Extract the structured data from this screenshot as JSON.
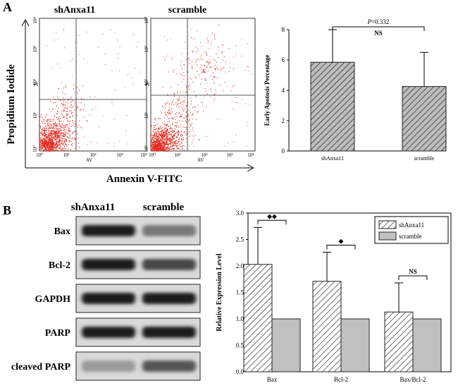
{
  "panel_a": {
    "label": "A",
    "flow": {
      "y_axis_label": "Propidium Iodide",
      "x_axis_label": "Annexin V-FITC",
      "plots": [
        {
          "title": "shAnxa11",
          "x_channel": "AV",
          "y_channel": "PI",
          "tick_labels": [
            "10⁰",
            "10¹",
            "10²",
            "10³",
            "10⁴"
          ]
        },
        {
          "title": "scramble",
          "x_channel": "AV",
          "y_channel": "PI",
          "tick_labels": [
            "10⁰",
            "10¹",
            "10²",
            "10³",
            "10⁴"
          ]
        }
      ],
      "dot_color": "#e0241a"
    }
  },
  "panel_b": {
    "label": "B",
    "blot": {
      "lane_labels": [
        "shAnxa11",
        "scramble"
      ],
      "rows": [
        {
          "label": "Bax",
          "intensity": [
            0.92,
            0.45
          ]
        },
        {
          "label": "Bcl-2",
          "intensity": [
            0.9,
            0.7
          ]
        },
        {
          "label": "GAPDH",
          "intensity": [
            0.9,
            0.9
          ]
        },
        {
          "label": "PARP",
          "intensity": [
            0.9,
            0.9
          ]
        },
        {
          "label": "cleaved PARP",
          "intensity": [
            0.28,
            0.62
          ]
        }
      ]
    }
  },
  "chart_data": [
    {
      "type": "bar",
      "title": "",
      "xlabel": "",
      "ylabel": "Early Apotosis Percentage",
      "categories": [
        "shAnxa11",
        "scramble"
      ],
      "values": [
        5.85,
        4.25
      ],
      "errors": [
        2.15,
        2.25
      ],
      "ylim": [
        0,
        8
      ],
      "yticks": [
        0,
        2,
        4,
        6,
        8
      ],
      "annotation": {
        "p_label": "P",
        "p_value": "=0.332",
        "significance": "NS"
      }
    },
    {
      "type": "bar",
      "title": "",
      "xlabel": "",
      "ylabel": "Relative Expression Level",
      "categories": [
        "Bax",
        "Bcl-2",
        "Bax/Bcl-2"
      ],
      "series": [
        {
          "name": "shAnxa11",
          "values": [
            2.03,
            1.71,
            1.13
          ],
          "errors": [
            0.7,
            0.55,
            0.55
          ]
        },
        {
          "name": "scramble",
          "values": [
            1.0,
            1.0,
            1.0
          ],
          "errors": [
            0,
            0,
            0
          ]
        }
      ],
      "ylim": [
        0,
        3.0
      ],
      "yticks": [
        "0.0",
        "0.5",
        "1.0",
        "1.5",
        "2.0",
        "2.5",
        "3.0"
      ],
      "significance": [
        "◆◆",
        "◆",
        "NS"
      ],
      "legend_position": "top-right"
    }
  ]
}
